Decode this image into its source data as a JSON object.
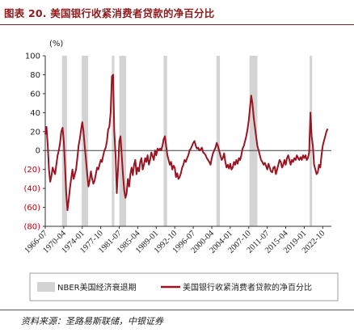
{
  "figure": {
    "title": "图表 20. 美国银行收紧消费者贷款的净百分比",
    "source": "资料来源：圣路易斯联储，中银证券"
  },
  "colors": {
    "title": "#8e1b1e",
    "line": "#9b1421",
    "recession": "#d3d3d3",
    "negative_labels": "#c0000b"
  },
  "chart_data": {
    "type": "line",
    "ylabel": "(%)",
    "ylim": [
      -80,
      100
    ],
    "yticks": [
      100,
      80,
      60,
      40,
      20,
      0,
      -20,
      -40,
      -60,
      -80
    ],
    "ytick_labels": [
      "100",
      "80",
      "60",
      "40",
      "20",
      "0",
      "(20)",
      "(40)",
      "(60)",
      "(80)"
    ],
    "xlim": [
      1966.5,
      2024.5
    ],
    "xticks": [
      "1966-07",
      "1970-04",
      "1974-01",
      "1977-10",
      "1981-07",
      "1985-04",
      "1989-01",
      "1992-10",
      "1996-07",
      "2000-04",
      "2004-01",
      "2007-10",
      "2011-07",
      "2015-04",
      "2019-01",
      "2022-10"
    ],
    "grid": false,
    "legend": {
      "placement": "bottom"
    },
    "recessions": {
      "name": "NBER美国经济衰退期",
      "periods": [
        [
          1969.9,
          1970.9
        ],
        [
          1973.9,
          1975.2
        ],
        [
          1980.0,
          1980.5
        ],
        [
          1981.5,
          1982.9
        ],
        [
          1990.5,
          1991.2
        ],
        [
          2001.2,
          2001.9
        ],
        [
          2007.9,
          2009.5
        ],
        [
          2020.1,
          2020.4
        ]
      ]
    },
    "series": [
      {
        "name": "美国银行收紧消费者贷款的净百分比",
        "points": [
          [
            1966.5,
            17
          ],
          [
            1966.75,
            25
          ],
          [
            1967.0,
            5
          ],
          [
            1967.25,
            -20
          ],
          [
            1967.5,
            -33
          ],
          [
            1967.75,
            -27
          ],
          [
            1968.0,
            -18
          ],
          [
            1968.25,
            -22
          ],
          [
            1968.5,
            -25
          ],
          [
            1968.75,
            -15
          ],
          [
            1969.0,
            -5
          ],
          [
            1969.25,
            0
          ],
          [
            1969.5,
            8
          ],
          [
            1969.75,
            20
          ],
          [
            1970.0,
            24
          ],
          [
            1970.25,
            10
          ],
          [
            1970.5,
            -15
          ],
          [
            1970.75,
            -45
          ],
          [
            1971.0,
            -63
          ],
          [
            1971.25,
            -52
          ],
          [
            1971.5,
            -40
          ],
          [
            1971.75,
            -30
          ],
          [
            1972.0,
            -20
          ],
          [
            1972.25,
            -30
          ],
          [
            1972.5,
            -25
          ],
          [
            1972.75,
            -20
          ],
          [
            1973.0,
            -8
          ],
          [
            1973.25,
            5
          ],
          [
            1973.5,
            12
          ],
          [
            1973.75,
            22
          ],
          [
            1974.0,
            30
          ],
          [
            1974.25,
            20
          ],
          [
            1974.5,
            5
          ],
          [
            1974.75,
            -10
          ],
          [
            1975.0,
            -25
          ],
          [
            1975.25,
            -38
          ],
          [
            1975.5,
            -32
          ],
          [
            1975.75,
            -22
          ],
          [
            1976.0,
            -30
          ],
          [
            1976.25,
            -35
          ],
          [
            1976.5,
            -32
          ],
          [
            1976.75,
            -25
          ],
          [
            1977.0,
            -18
          ],
          [
            1977.25,
            -20
          ],
          [
            1977.5,
            -15
          ],
          [
            1977.75,
            -10
          ],
          [
            1978.0,
            -12
          ],
          [
            1978.25,
            -5
          ],
          [
            1978.5,
            0
          ],
          [
            1978.75,
            3
          ],
          [
            1979.0,
            10
          ],
          [
            1979.25,
            22
          ],
          [
            1979.5,
            25
          ],
          [
            1979.75,
            40
          ],
          [
            1980.0,
            78
          ],
          [
            1980.25,
            80
          ],
          [
            1980.5,
            20
          ],
          [
            1980.75,
            -5
          ],
          [
            1981.0,
            -45
          ],
          [
            1981.25,
            -20
          ],
          [
            1981.5,
            10
          ],
          [
            1981.75,
            15
          ],
          [
            1982.0,
            -5
          ],
          [
            1982.25,
            -25
          ],
          [
            1982.5,
            -42
          ],
          [
            1982.75,
            -50
          ],
          [
            1983.0,
            -45
          ],
          [
            1983.25,
            -30
          ],
          [
            1983.5,
            -38
          ],
          [
            1983.75,
            -25
          ],
          [
            1984.0,
            -18
          ],
          [
            1984.25,
            -26
          ],
          [
            1984.5,
            -15
          ],
          [
            1984.75,
            -10
          ],
          [
            1985.0,
            -25
          ],
          [
            1985.25,
            -18
          ],
          [
            1985.5,
            -22
          ],
          [
            1985.75,
            -12
          ],
          [
            1986.0,
            -8
          ],
          [
            1986.25,
            -20
          ],
          [
            1986.5,
            -15
          ],
          [
            1986.75,
            -8
          ],
          [
            1987.0,
            -12
          ],
          [
            1987.25,
            -5
          ],
          [
            1987.5,
            -15
          ],
          [
            1987.75,
            -10
          ],
          [
            1988.0,
            -2
          ],
          [
            1988.25,
            -6
          ],
          [
            1988.5,
            -10
          ],
          [
            1988.75,
            0
          ],
          [
            1989.0,
            -5
          ],
          [
            1989.25,
            2
          ],
          [
            1989.5,
            0
          ],
          [
            1989.75,
            2
          ],
          [
            1990.0,
            0
          ],
          [
            1990.25,
            5
          ],
          [
            1990.5,
            12
          ],
          [
            1990.75,
            15
          ],
          [
            1991.0,
            5
          ],
          [
            1991.25,
            -5
          ],
          [
            1991.5,
            -10
          ],
          [
            1991.75,
            -15
          ],
          [
            1992.0,
            -12
          ],
          [
            1992.25,
            -20
          ],
          [
            1992.5,
            -16
          ],
          [
            1992.75,
            -18
          ],
          [
            1993.0,
            -28
          ],
          [
            1993.25,
            -24
          ],
          [
            1993.5,
            -30
          ],
          [
            1993.75,
            -28
          ],
          [
            1994.0,
            -24
          ],
          [
            1994.25,
            -18
          ],
          [
            1994.5,
            -15
          ],
          [
            1994.75,
            -10
          ],
          [
            1995.0,
            -12
          ],
          [
            1995.25,
            -8
          ],
          [
            1995.5,
            -5
          ],
          [
            1995.75,
            0
          ],
          [
            1996.0,
            2
          ],
          [
            1996.25,
            5
          ],
          [
            1996.5,
            8
          ],
          [
            1996.75,
            10
          ],
          [
            1997.0,
            5
          ],
          [
            1997.25,
            2
          ],
          [
            1997.5,
            3
          ],
          [
            1997.75,
            0
          ],
          [
            1998.0,
            1
          ],
          [
            1998.25,
            3
          ],
          [
            1998.5,
            -2
          ],
          [
            1998.75,
            -3
          ],
          [
            1999.0,
            -5
          ],
          [
            1999.25,
            -8
          ],
          [
            1999.5,
            -10
          ],
          [
            1999.75,
            -12
          ],
          [
            2000.0,
            -15
          ],
          [
            2000.25,
            -8
          ],
          [
            2000.5,
            -3
          ],
          [
            2000.75,
            0
          ],
          [
            2001.0,
            3
          ],
          [
            2001.25,
            8
          ],
          [
            2001.5,
            5
          ],
          [
            2001.75,
            0
          ],
          [
            2002.0,
            -5
          ],
          [
            2002.25,
            -10
          ],
          [
            2002.5,
            -8
          ],
          [
            2002.75,
            -3
          ],
          [
            2003.0,
            -12
          ],
          [
            2003.25,
            -18
          ],
          [
            2003.5,
            -15
          ],
          [
            2003.75,
            -19
          ],
          [
            2004.0,
            -14
          ],
          [
            2004.25,
            -20
          ],
          [
            2004.5,
            -18
          ],
          [
            2004.75,
            -12
          ],
          [
            2005.0,
            -15
          ],
          [
            2005.25,
            -10
          ],
          [
            2005.5,
            -14
          ],
          [
            2005.75,
            -8
          ],
          [
            2006.0,
            -10
          ],
          [
            2006.25,
            -5
          ],
          [
            2006.5,
            2
          ],
          [
            2006.75,
            5
          ],
          [
            2007.0,
            10
          ],
          [
            2007.25,
            15
          ],
          [
            2007.5,
            22
          ],
          [
            2007.75,
            32
          ],
          [
            2008.0,
            45
          ],
          [
            2008.25,
            58
          ],
          [
            2008.5,
            50
          ],
          [
            2008.75,
            35
          ],
          [
            2009.0,
            25
          ],
          [
            2009.25,
            15
          ],
          [
            2009.5,
            5
          ],
          [
            2009.75,
            0
          ],
          [
            2010.0,
            -5
          ],
          [
            2010.25,
            -10
          ],
          [
            2010.5,
            -12
          ],
          [
            2010.75,
            -15
          ],
          [
            2011.0,
            -13
          ],
          [
            2011.25,
            -16
          ],
          [
            2011.5,
            -20
          ],
          [
            2011.75,
            -14
          ],
          [
            2012.0,
            -18
          ],
          [
            2012.25,
            -22
          ],
          [
            2012.5,
            -23
          ],
          [
            2012.75,
            -18
          ],
          [
            2013.0,
            -17
          ],
          [
            2013.25,
            -25
          ],
          [
            2013.5,
            -20
          ],
          [
            2013.75,
            -15
          ],
          [
            2014.0,
            -10
          ],
          [
            2014.25,
            -12
          ],
          [
            2014.5,
            -18
          ],
          [
            2014.75,
            -15
          ],
          [
            2015.0,
            -10
          ],
          [
            2015.25,
            -15
          ],
          [
            2015.5,
            -8
          ],
          [
            2015.75,
            -5
          ],
          [
            2016.0,
            -10
          ],
          [
            2016.25,
            -15
          ],
          [
            2016.5,
            -10
          ],
          [
            2016.75,
            -12
          ],
          [
            2017.0,
            -8
          ],
          [
            2017.25,
            -10
          ],
          [
            2017.5,
            -5
          ],
          [
            2017.75,
            -8
          ],
          [
            2018.0,
            -10
          ],
          [
            2018.25,
            -7
          ],
          [
            2018.5,
            -10
          ],
          [
            2018.75,
            -5
          ],
          [
            2019.0,
            -8
          ],
          [
            2019.25,
            -5
          ],
          [
            2019.5,
            -10
          ],
          [
            2019.75,
            -8
          ],
          [
            2020.0,
            -2
          ],
          [
            2020.25,
            40
          ],
          [
            2020.5,
            15
          ],
          [
            2020.75,
            5
          ],
          [
            2021.0,
            -15
          ],
          [
            2021.25,
            -20
          ],
          [
            2021.5,
            -25
          ],
          [
            2021.75,
            -23
          ],
          [
            2022.0,
            -15
          ],
          [
            2022.25,
            -18
          ],
          [
            2022.5,
            -5
          ],
          [
            2022.75,
            5
          ],
          [
            2023.0,
            10
          ],
          [
            2023.25,
            15
          ],
          [
            2023.5,
            20
          ],
          [
            2023.75,
            23
          ]
        ]
      }
    ]
  }
}
